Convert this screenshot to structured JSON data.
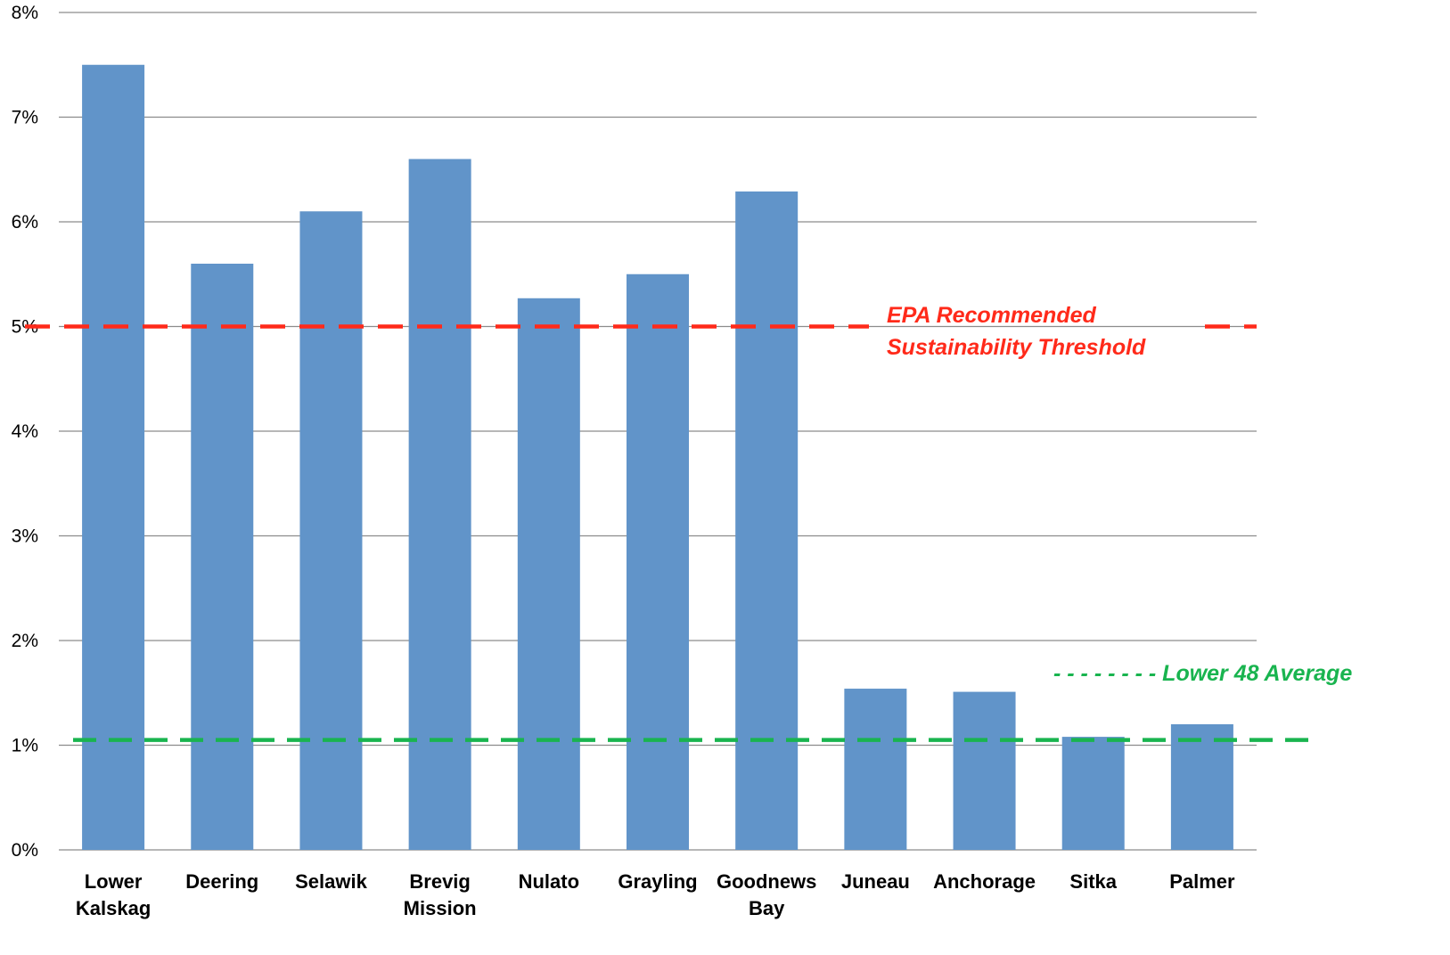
{
  "chart_data": {
    "type": "bar",
    "title": "",
    "xlabel": "",
    "ylabel": "",
    "ylim": [
      0,
      8
    ],
    "yticks": [
      "0%",
      "1%",
      "2%",
      "3%",
      "4%",
      "5%",
      "6%",
      "7%",
      "8%"
    ],
    "grid": true,
    "legend": "none",
    "categories": [
      [
        "Lower",
        "Kalskag"
      ],
      [
        "Deering"
      ],
      [
        "Selawik"
      ],
      [
        "Brevig",
        "Mission"
      ],
      [
        "Nulato"
      ],
      [
        "Grayling"
      ],
      [
        "Goodnews",
        "Bay"
      ],
      [
        "Juneau"
      ],
      [
        "Anchorage"
      ],
      [
        "Sitka"
      ],
      [
        "Palmer"
      ]
    ],
    "values": [
      7.5,
      5.6,
      6.1,
      6.6,
      5.27,
      5.5,
      6.29,
      1.54,
      1.51,
      1.08,
      1.2
    ],
    "bar_color": "#6194c9",
    "reference_lines": [
      {
        "label": [
          "EPA Recommended",
          "Sustainability Threshold"
        ],
        "value": 5.0,
        "color": "#ff2a1a",
        "style": "dashed"
      },
      {
        "label": [
          "- - - - - - - -  Lower 48 Average"
        ],
        "value": 1.05,
        "color": "#19b44f",
        "style": "dashed"
      }
    ]
  }
}
